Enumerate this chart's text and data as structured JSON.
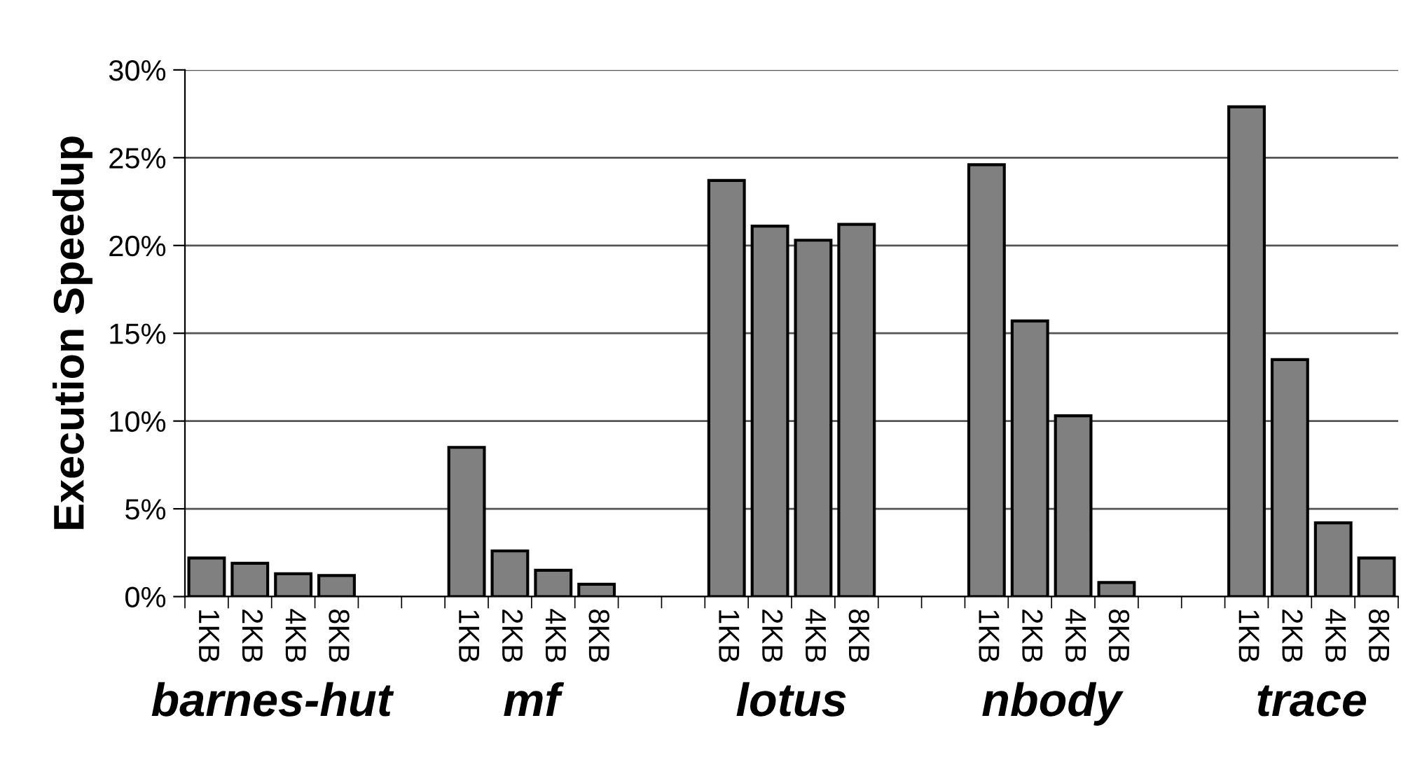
{
  "chart_data": {
    "type": "bar",
    "ylabel": "Execution Speedup",
    "categories": [
      "1KB",
      "2KB",
      "4KB",
      "8KB",
      null,
      null,
      "1KB",
      "2KB",
      "4KB",
      "8KB",
      null,
      null,
      "1KB",
      "2KB",
      "4KB",
      "8KB",
      null,
      null,
      "1KB",
      "2KB",
      "4KB",
      "8KB",
      null,
      null,
      "1KB",
      "2KB",
      "4KB",
      "8KB"
    ],
    "values": [
      2.2,
      1.9,
      1.3,
      1.2,
      null,
      null,
      8.5,
      2.6,
      1.5,
      0.7,
      null,
      null,
      23.7,
      21.1,
      20.3,
      21.2,
      null,
      null,
      24.6,
      15.7,
      10.3,
      0.8,
      null,
      null,
      27.9,
      13.5,
      4.2,
      2.2
    ],
    "color": "#808080",
    "ylim": [
      0,
      30
    ],
    "yticks": [
      {
        "value": 0,
        "label": "0%"
      },
      {
        "value": 5,
        "label": "5%"
      },
      {
        "value": 10,
        "label": "10%"
      },
      {
        "value": 15,
        "label": "15%"
      },
      {
        "value": 20,
        "label": "20%"
      },
      {
        "value": 25,
        "label": "25%"
      },
      {
        "value": 30,
        "label": "30%"
      }
    ],
    "grid": "y",
    "annotations": [
      "barnes-hut",
      "mf",
      "lotus",
      "nbody",
      "trace"
    ]
  }
}
